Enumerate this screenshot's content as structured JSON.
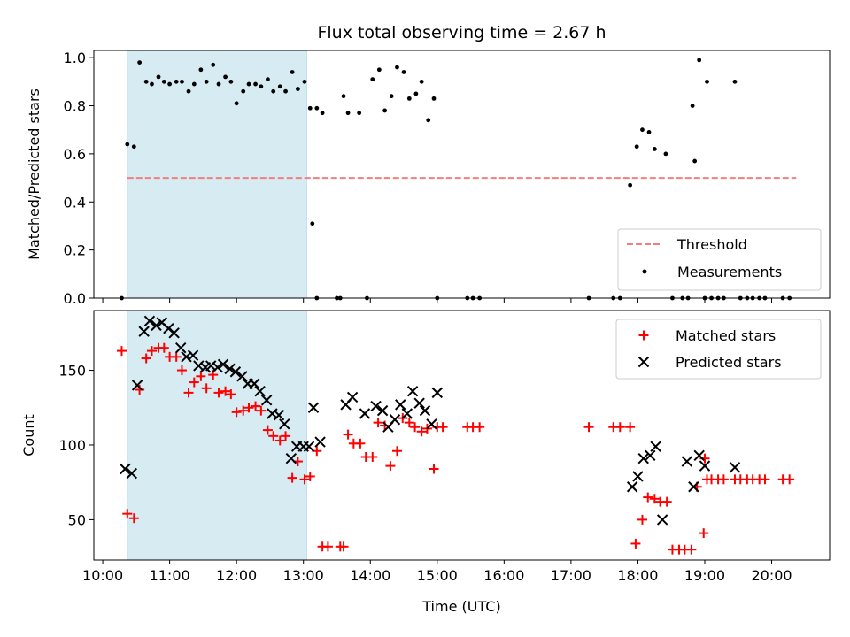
{
  "chart_data": [
    {
      "type": "scatter",
      "title": "Flux total observing time = 2.67 h",
      "ylabel": "Matched/Predicted stars",
      "xlabel": "",
      "ylim": [
        0,
        1.03
      ],
      "xlim": [
        "09:52",
        "20:52"
      ],
      "yticks": [
        "0.0",
        "0.2",
        "0.4",
        "0.6",
        "0.8",
        "1.0"
      ],
      "xticks": [
        "10:00",
        "11:00",
        "12:00",
        "13:00",
        "14:00",
        "15:00",
        "16:00",
        "17:00",
        "18:00",
        "19:00",
        "20:00"
      ],
      "shaded_span": [
        "10:22",
        "13:03"
      ],
      "threshold": {
        "name": "Threshold",
        "value": 0.5,
        "x": [
          "10:22",
          "20:22"
        ],
        "color": "#f08080"
      },
      "legend": {
        "placement": "lower-right",
        "entries": [
          "Threshold",
          "Measurements"
        ]
      },
      "series": [
        {
          "name": "Measurements",
          "color": "#000000",
          "points": [
            [
              "10:17",
              0.0
            ],
            [
              "10:22",
              0.64
            ],
            [
              "10:28",
              0.63
            ],
            [
              "10:33",
              0.98
            ],
            [
              "10:39",
              0.9
            ],
            [
              "10:44",
              0.89
            ],
            [
              "10:50",
              0.92
            ],
            [
              "10:55",
              0.9
            ],
            [
              "11:00",
              0.89
            ],
            [
              "11:06",
              0.9
            ],
            [
              "11:11",
              0.9
            ],
            [
              "11:17",
              0.86
            ],
            [
              "11:22",
              0.89
            ],
            [
              "11:28",
              0.95
            ],
            [
              "11:33",
              0.9
            ],
            [
              "11:39",
              0.97
            ],
            [
              "11:44",
              0.89
            ],
            [
              "11:50",
              0.92
            ],
            [
              "11:55",
              0.9
            ],
            [
              "12:00",
              0.81
            ],
            [
              "12:06",
              0.86
            ],
            [
              "12:11",
              0.89
            ],
            [
              "12:17",
              0.89
            ],
            [
              "12:22",
              0.88
            ],
            [
              "12:28",
              0.91
            ],
            [
              "12:33",
              0.86
            ],
            [
              "12:39",
              0.88
            ],
            [
              "12:44",
              0.86
            ],
            [
              "12:50",
              0.94
            ],
            [
              "12:55",
              0.87
            ],
            [
              "13:01",
              0.9
            ],
            [
              "13:06",
              0.79
            ],
            [
              "13:12",
              0.79
            ],
            [
              "13:17",
              0.77
            ],
            [
              "13:08",
              0.31
            ],
            [
              "13:12",
              0.0
            ],
            [
              "13:30",
              0.0
            ],
            [
              "13:33",
              0.0
            ],
            [
              "13:36",
              0.84
            ],
            [
              "13:40",
              0.77
            ],
            [
              "13:50",
              0.77
            ],
            [
              "13:57",
              0.0
            ],
            [
              "14:02",
              0.91
            ],
            [
              "14:08",
              0.95
            ],
            [
              "14:13",
              0.78
            ],
            [
              "14:19",
              0.84
            ],
            [
              "14:24",
              0.96
            ],
            [
              "14:30",
              0.94
            ],
            [
              "14:35",
              0.83
            ],
            [
              "14:41",
              0.85
            ],
            [
              "14:46",
              0.9
            ],
            [
              "14:52",
              0.74
            ],
            [
              "14:57",
              0.83
            ],
            [
              "15:00",
              0.0
            ],
            [
              "15:27",
              0.0
            ],
            [
              "15:32",
              0.0
            ],
            [
              "15:38",
              0.0
            ],
            [
              "17:16",
              0.0
            ],
            [
              "17:38",
              0.0
            ],
            [
              "17:44",
              0.0
            ],
            [
              "17:53",
              0.47
            ],
            [
              "17:59",
              0.63
            ],
            [
              "18:04",
              0.7
            ],
            [
              "18:10",
              0.69
            ],
            [
              "18:15",
              0.62
            ],
            [
              "18:25",
              0.6
            ],
            [
              "18:31",
              0.0
            ],
            [
              "18:40",
              0.0
            ],
            [
              "18:45",
              0.0
            ],
            [
              "18:49",
              0.8
            ],
            [
              "18:51",
              0.57
            ],
            [
              "18:55",
              0.99
            ],
            [
              "19:00",
              0.0
            ],
            [
              "19:02",
              0.9
            ],
            [
              "19:06",
              0.0
            ],
            [
              "19:12",
              0.0
            ],
            [
              "19:17",
              0.0
            ],
            [
              "19:27",
              0.9
            ],
            [
              "19:32",
              0.0
            ],
            [
              "19:38",
              0.0
            ],
            [
              "19:43",
              0.0
            ],
            [
              "19:49",
              0.0
            ],
            [
              "19:54",
              0.0
            ],
            [
              "20:10",
              0.0
            ],
            [
              "20:16",
              0.0
            ]
          ]
        }
      ]
    },
    {
      "type": "scatter",
      "title": "",
      "ylabel": "Count",
      "xlabel": "Time (UTC)",
      "ylim": [
        23,
        190
      ],
      "xlim": [
        "09:52",
        "20:52"
      ],
      "yticks": [
        "50",
        "100",
        "150"
      ],
      "xticks": [
        "10:00",
        "11:00",
        "12:00",
        "13:00",
        "14:00",
        "15:00",
        "16:00",
        "17:00",
        "18:00",
        "19:00",
        "20:00"
      ],
      "shaded_span": [
        "10:22",
        "13:03"
      ],
      "legend": {
        "placement": "upper-right",
        "entries": [
          "Matched stars",
          "Predicted stars"
        ]
      },
      "series": [
        {
          "name": "Matched stars",
          "marker": "plus",
          "color": "#ff0000",
          "points": [
            [
              "10:17",
              163
            ],
            [
              "10:22",
              54
            ],
            [
              "10:28",
              51
            ],
            [
              "10:33",
              137
            ],
            [
              "10:39",
              158
            ],
            [
              "10:44",
              163
            ],
            [
              "10:50",
              165
            ],
            [
              "10:55",
              165
            ],
            [
              "11:00",
              159
            ],
            [
              "11:06",
              159
            ],
            [
              "11:11",
              150
            ],
            [
              "11:17",
              135
            ],
            [
              "11:22",
              142
            ],
            [
              "11:28",
              146
            ],
            [
              "11:33",
              138
            ],
            [
              "11:39",
              147
            ],
            [
              "11:44",
              135
            ],
            [
              "11:50",
              136
            ],
            [
              "11:55",
              134
            ],
            [
              "12:00",
              122
            ],
            [
              "12:06",
              123
            ],
            [
              "12:11",
              125
            ],
            [
              "12:17",
              126
            ],
            [
              "12:22",
              123
            ],
            [
              "12:28",
              110
            ],
            [
              "12:33",
              106
            ],
            [
              "12:39",
              103
            ],
            [
              "12:44",
              106
            ],
            [
              "12:50",
              78
            ],
            [
              "12:55",
              89
            ],
            [
              "13:01",
              77
            ],
            [
              "13:06",
              79
            ],
            [
              "13:12",
              96
            ],
            [
              "13:17",
              32
            ],
            [
              "13:22",
              32
            ],
            [
              "13:33",
              32
            ],
            [
              "13:36",
              32
            ],
            [
              "13:40",
              107
            ],
            [
              "13:45",
              101
            ],
            [
              "13:51",
              101
            ],
            [
              "13:56",
              92
            ],
            [
              "14:02",
              92
            ],
            [
              "14:07",
              115
            ],
            [
              "14:13",
              113
            ],
            [
              "14:18",
              86
            ],
            [
              "14:24",
              96
            ],
            [
              "14:29",
              118
            ],
            [
              "14:35",
              115
            ],
            [
              "14:40",
              112
            ],
            [
              "14:46",
              109
            ],
            [
              "14:51",
              111
            ],
            [
              "14:57",
              84
            ],
            [
              "15:00",
              112
            ],
            [
              "15:05",
              112
            ],
            [
              "15:27",
              112
            ],
            [
              "15:32",
              112
            ],
            [
              "15:38",
              112
            ],
            [
              "17:16",
              112
            ],
            [
              "17:38",
              112
            ],
            [
              "17:44",
              112
            ],
            [
              "17:53",
              112
            ],
            [
              "17:58",
              34
            ],
            [
              "18:04",
              50
            ],
            [
              "18:09",
              65
            ],
            [
              "18:15",
              64
            ],
            [
              "18:20",
              62
            ],
            [
              "18:26",
              62
            ],
            [
              "18:31",
              30
            ],
            [
              "18:37",
              30
            ],
            [
              "18:42",
              30
            ],
            [
              "18:48",
              30
            ],
            [
              "18:53",
              72
            ],
            [
              "18:59",
              41
            ],
            [
              "19:00",
              91
            ],
            [
              "19:02",
              77
            ],
            [
              "19:06",
              77
            ],
            [
              "19:12",
              77
            ],
            [
              "19:17",
              77
            ],
            [
              "19:27",
              77
            ],
            [
              "19:32",
              77
            ],
            [
              "19:38",
              77
            ],
            [
              "19:43",
              77
            ],
            [
              "19:49",
              77
            ],
            [
              "19:54",
              77
            ],
            [
              "20:10",
              77
            ],
            [
              "20:16",
              77
            ]
          ]
        },
        {
          "name": "Predicted stars",
          "marker": "x",
          "color": "#000000",
          "points": [
            [
              "10:20",
              84
            ],
            [
              "10:26",
              81
            ],
            [
              "10:31",
              140
            ],
            [
              "10:37",
              176
            ],
            [
              "10:42",
              183
            ],
            [
              "10:48",
              180
            ],
            [
              "10:53",
              182
            ],
            [
              "10:59",
              178
            ],
            [
              "11:04",
              175
            ],
            [
              "11:10",
              165
            ],
            [
              "11:15",
              159
            ],
            [
              "11:21",
              160
            ],
            [
              "11:26",
              153
            ],
            [
              "11:32",
              152
            ],
            [
              "11:37",
              153
            ],
            [
              "11:43",
              152
            ],
            [
              "11:48",
              154
            ],
            [
              "11:54",
              151
            ],
            [
              "11:59",
              149
            ],
            [
              "12:05",
              146
            ],
            [
              "12:10",
              141
            ],
            [
              "12:16",
              141
            ],
            [
              "12:21",
              136
            ],
            [
              "12:27",
              130
            ],
            [
              "12:32",
              121
            ],
            [
              "12:38",
              120
            ],
            [
              "12:43",
              114
            ],
            [
              "12:49",
              91
            ],
            [
              "12:54",
              99
            ],
            [
              "13:00",
              99
            ],
            [
              "13:05",
              99
            ],
            [
              "13:09",
              125
            ],
            [
              "13:15",
              102
            ],
            [
              "13:38",
              127
            ],
            [
              "13:44",
              132
            ],
            [
              "13:55",
              121
            ],
            [
              "14:05",
              126
            ],
            [
              "14:11",
              123
            ],
            [
              "14:16",
              112
            ],
            [
              "14:22",
              117
            ],
            [
              "14:27",
              127
            ],
            [
              "14:33",
              121
            ],
            [
              "14:38",
              136
            ],
            [
              "14:44",
              128
            ],
            [
              "14:49",
              123
            ],
            [
              "14:55",
              114
            ],
            [
              "15:00",
              135
            ],
            [
              "17:55",
              72
            ],
            [
              "18:00",
              79
            ],
            [
              "18:05",
              91
            ],
            [
              "18:11",
              93
            ],
            [
              "18:16",
              99
            ],
            [
              "18:22",
              50
            ],
            [
              "18:44",
              89
            ],
            [
              "18:50",
              72
            ],
            [
              "18:55",
              93
            ],
            [
              "19:00",
              86
            ],
            [
              "19:27",
              85
            ]
          ]
        }
      ]
    }
  ]
}
